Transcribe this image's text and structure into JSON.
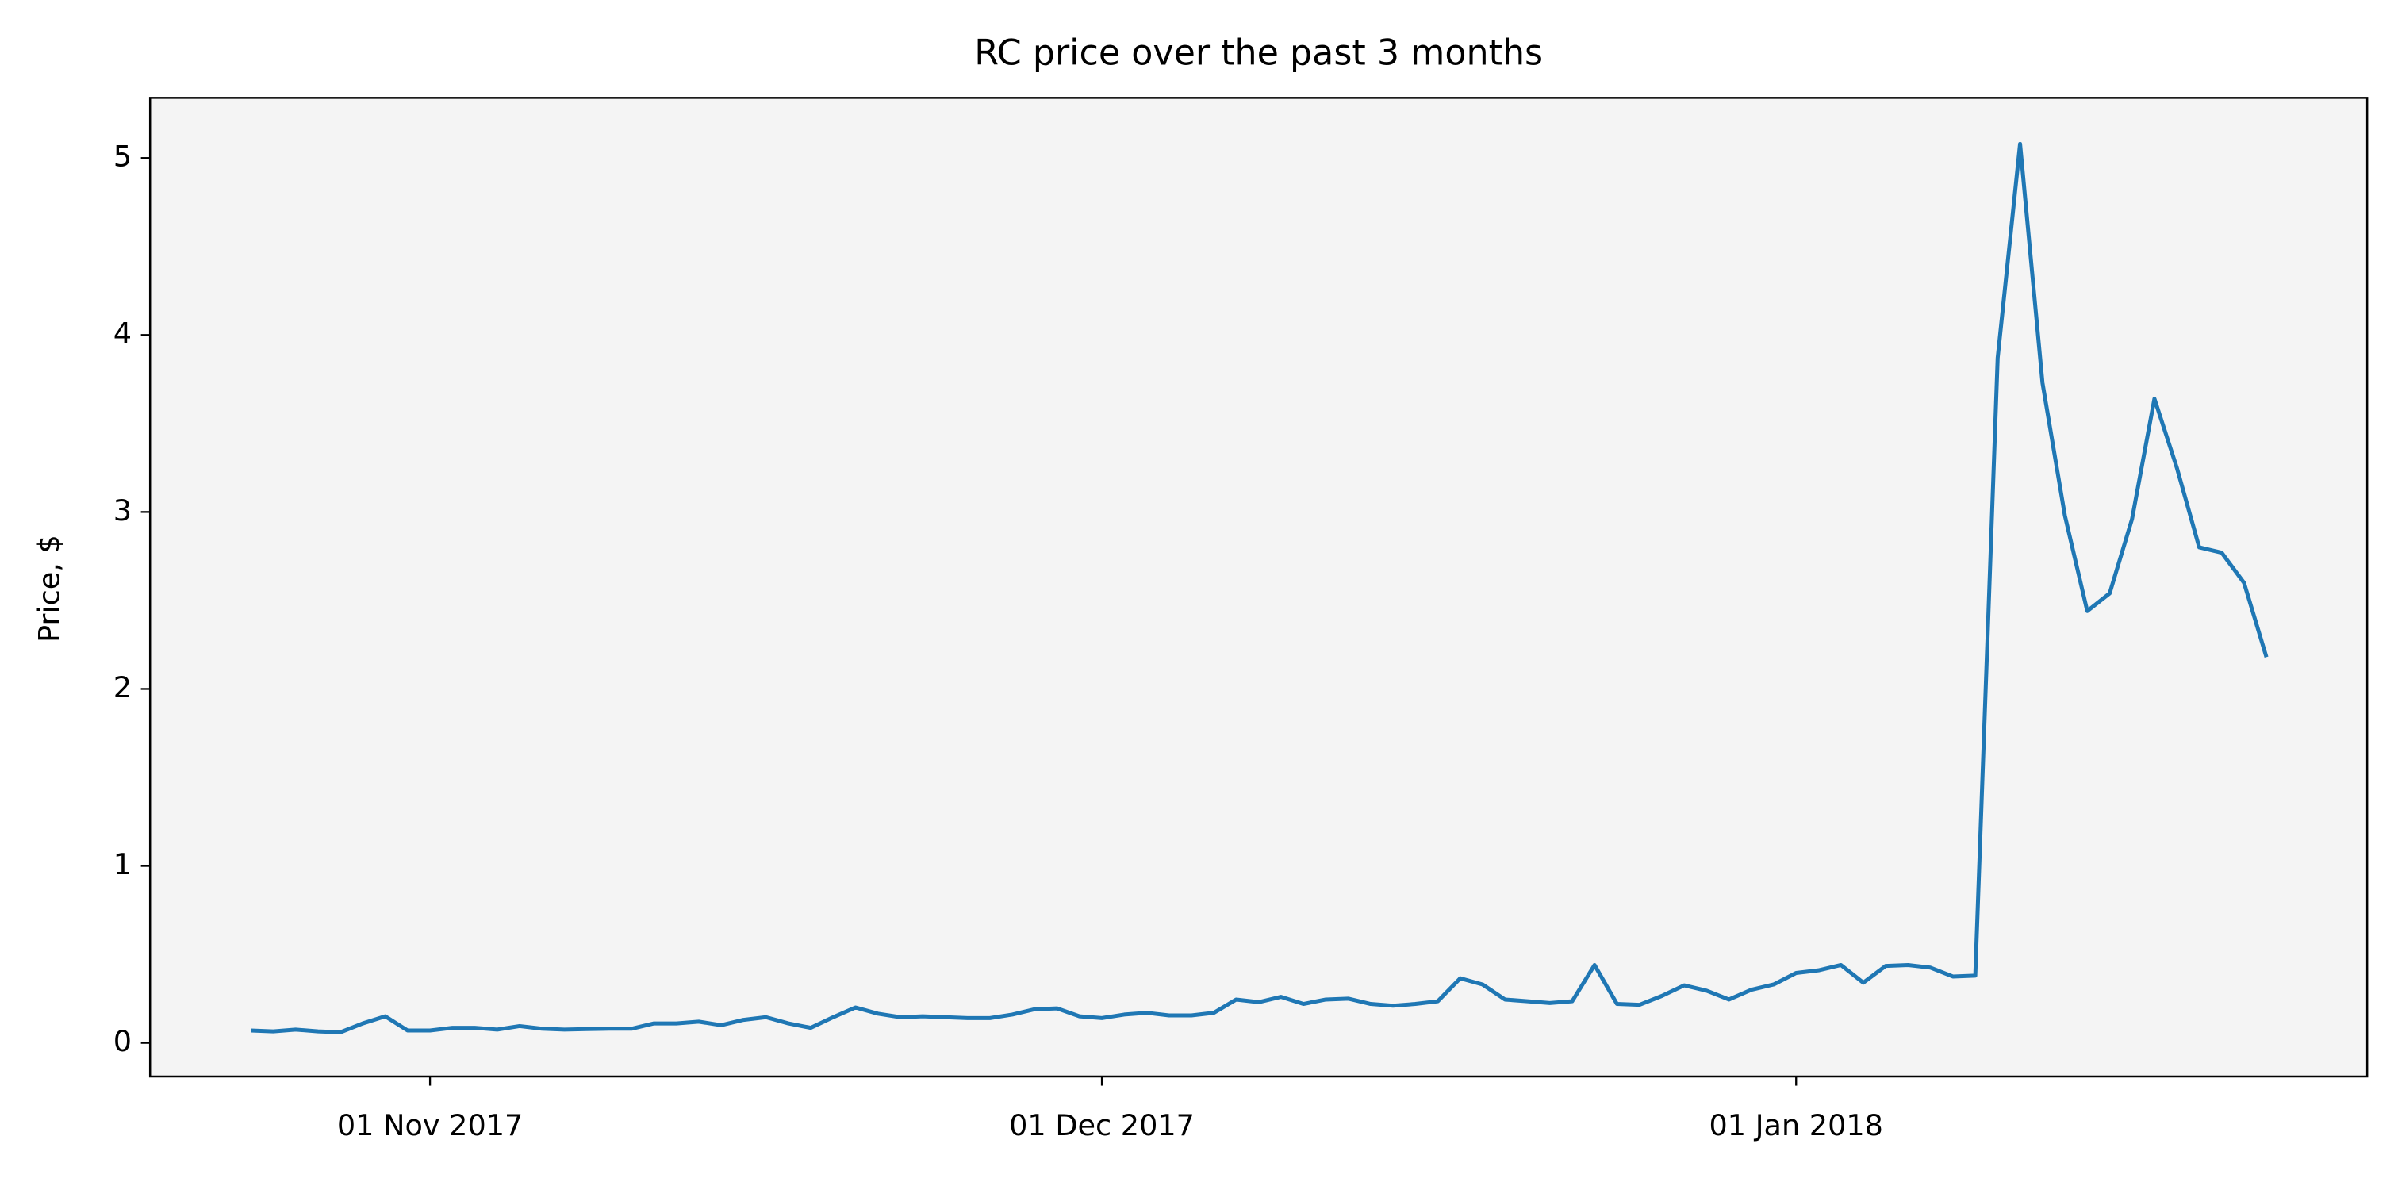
{
  "chart_data": {
    "type": "line",
    "title": "RC price over the past 3 months",
    "y_label": "Price, $",
    "x": [
      "2017-10-24",
      "2017-10-25",
      "2017-10-26",
      "2017-10-27",
      "2017-10-28",
      "2017-10-29",
      "2017-10-30",
      "2017-10-31",
      "2017-11-01",
      "2017-11-02",
      "2017-11-03",
      "2017-11-04",
      "2017-11-05",
      "2017-11-06",
      "2017-11-07",
      "2017-11-08",
      "2017-11-09",
      "2017-11-10",
      "2017-11-11",
      "2017-11-12",
      "2017-11-13",
      "2017-11-14",
      "2017-11-15",
      "2017-11-16",
      "2017-11-17",
      "2017-11-18",
      "2017-11-19",
      "2017-11-20",
      "2017-11-21",
      "2017-11-22",
      "2017-11-23",
      "2017-11-24",
      "2017-11-25",
      "2017-11-26",
      "2017-11-27",
      "2017-11-28",
      "2017-11-29",
      "2017-11-30",
      "2017-12-01",
      "2017-12-02",
      "2017-12-03",
      "2017-12-04",
      "2017-12-05",
      "2017-12-06",
      "2017-12-07",
      "2017-12-08",
      "2017-12-09",
      "2017-12-10",
      "2017-12-11",
      "2017-12-12",
      "2017-12-13",
      "2017-12-14",
      "2017-12-15",
      "2017-12-16",
      "2017-12-17",
      "2017-12-18",
      "2017-12-19",
      "2017-12-20",
      "2017-12-21",
      "2017-12-22",
      "2017-12-23",
      "2017-12-24",
      "2017-12-25",
      "2017-12-26",
      "2017-12-27",
      "2017-12-28",
      "2017-12-29",
      "2017-12-30",
      "2017-12-31",
      "2018-01-01",
      "2018-01-02",
      "2018-01-03",
      "2018-01-04",
      "2018-01-05",
      "2018-01-06",
      "2018-01-07",
      "2018-01-08",
      "2018-01-09",
      "2018-01-10",
      "2018-01-11",
      "2018-01-12",
      "2018-01-13",
      "2018-01-14",
      "2018-01-15",
      "2018-01-16",
      "2018-01-17",
      "2018-01-18",
      "2018-01-19",
      "2018-01-20",
      "2018-01-21",
      "2018-01-22"
    ],
    "series": [
      {
        "name": "RC",
        "color": "#1f77b4",
        "values": [
          0.07,
          0.065,
          0.075,
          0.065,
          0.06,
          0.11,
          0.15,
          0.07,
          0.07,
          0.085,
          0.085,
          0.075,
          0.095,
          0.08,
          0.075,
          0.078,
          0.08,
          0.08,
          0.11,
          0.11,
          0.12,
          0.1,
          0.13,
          0.145,
          0.11,
          0.085,
          0.145,
          0.2,
          0.165,
          0.145,
          0.15,
          0.145,
          0.14,
          0.14,
          0.16,
          0.19,
          0.195,
          0.15,
          0.14,
          0.16,
          0.17,
          0.155,
          0.155,
          0.17,
          0.245,
          0.23,
          0.26,
          0.22,
          0.245,
          0.25,
          0.22,
          0.21,
          0.22,
          0.235,
          0.365,
          0.33,
          0.245,
          0.235,
          0.225,
          0.235,
          0.44,
          0.22,
          0.215,
          0.265,
          0.325,
          0.295,
          0.245,
          0.3,
          0.33,
          0.395,
          0.41,
          0.44,
          0.34,
          0.435,
          0.44,
          0.425,
          0.375,
          0.38,
          3.87,
          5.08,
          3.73,
          2.98,
          2.44,
          2.54,
          2.96,
          3.64,
          3.25,
          2.8,
          2.77,
          2.6,
          2.18
        ]
      }
    ],
    "xlim": [
      "2017-10-19T12:00",
      "2018-01-26T12:00"
    ],
    "xticks": [
      {
        "value": "2017-11-01",
        "label": "01 Nov 2017"
      },
      {
        "value": "2017-12-01",
        "label": "01 Dec 2017"
      },
      {
        "value": "2018-01-01",
        "label": "01 Jan 2018"
      }
    ],
    "ylim": [
      -0.19,
      5.34
    ],
    "yticks": [
      0,
      1,
      2,
      3,
      4,
      5
    ],
    "grid": false,
    "background": "#f4f4f4"
  }
}
